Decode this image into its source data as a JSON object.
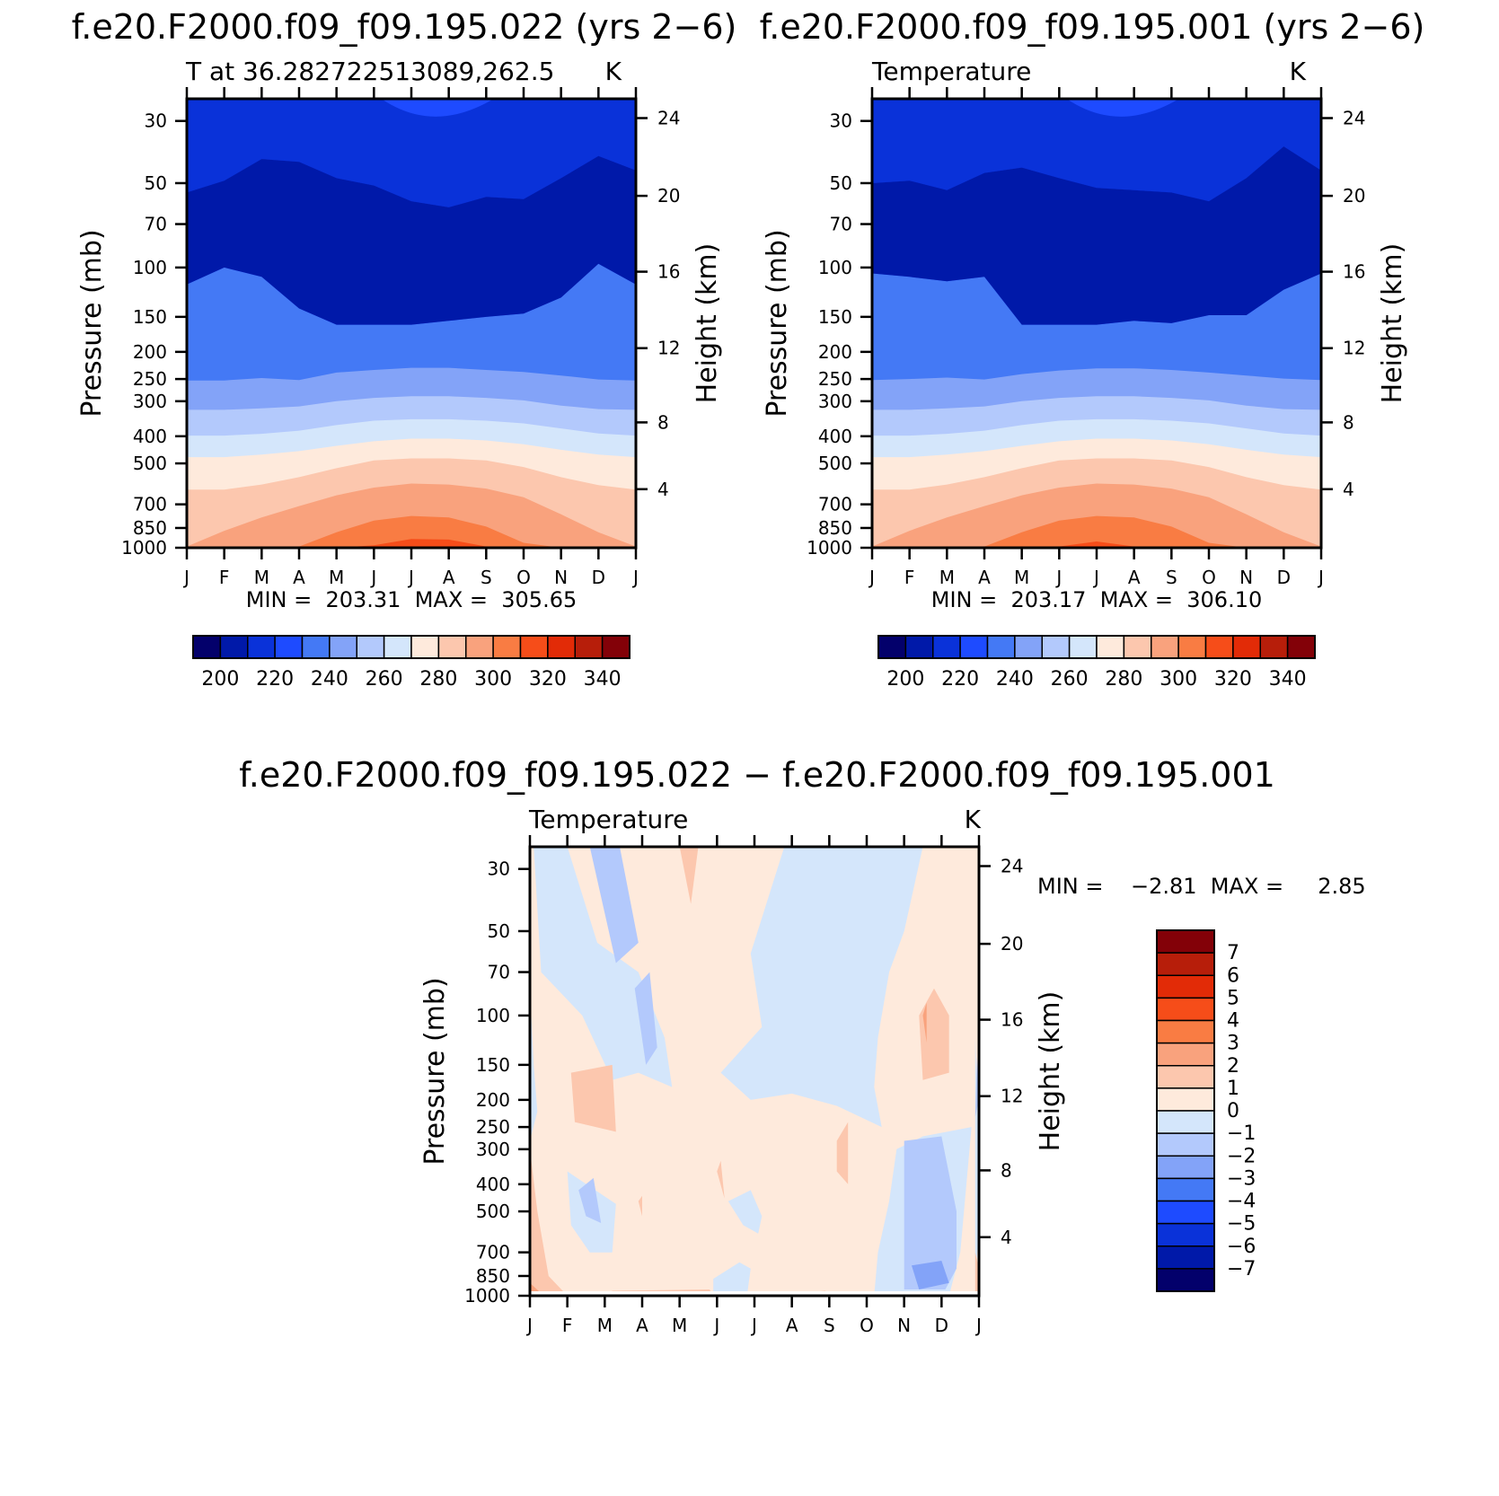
{
  "chart_data": [
    {
      "type": "heatmap",
      "title": "f.e20.F2000.f09_f09.195.022 (yrs 2−6)",
      "left_label": "T at 36.282722513089,262.5",
      "units": "K",
      "ylabel": "Pressure (mb)",
      "y2label": "Height (km)",
      "x_ticks": [
        "J",
        "F",
        "M",
        "A",
        "M",
        "J",
        "J",
        "A",
        "S",
        "O",
        "N",
        "D",
        "J"
      ],
      "y_ticks": [
        "30",
        "50",
        "70",
        "100",
        "150",
        "200",
        "250",
        "300",
        "400",
        "500",
        "700",
        "850",
        "1000"
      ],
      "y2_ticks": [
        "24",
        "20",
        "16",
        "12",
        "8",
        "4"
      ],
      "min_max_text": "MIN =  203.31  MAX =  305.65",
      "y_scale": "log",
      "ylim": [
        1000,
        25
      ],
      "colorbar_labels": [
        "200",
        "220",
        "240",
        "260",
        "280",
        "300",
        "320",
        "340"
      ],
      "colorbar_colors": [
        "#03006b",
        "#0019a9",
        "#0a32d9",
        "#1e4bff",
        "#4479f5",
        "#83a3f8",
        "#b3c9fc",
        "#d4e6fb",
        "#feeadc",
        "#fcc7ae",
        "#f9a27d",
        "#f97c43",
        "#f64d19",
        "#e22b07",
        "#b71e0a",
        "#830108"
      ],
      "contour_levels": [
        200,
        210,
        220,
        230,
        240,
        250,
        260,
        270,
        280,
        290,
        300,
        310,
        320,
        330,
        340
      ],
      "months": [
        1,
        2,
        3,
        4,
        5,
        6,
        7,
        8,
        9,
        10,
        11,
        12,
        13
      ],
      "boundaries": {
        "210": [
          54,
          49,
          41,
          42,
          48,
          51,
          58,
          61,
          56,
          57,
          48,
          40,
          45
        ],
        "220": [
          115,
          100,
          108,
          140,
          160,
          160,
          160,
          155,
          150,
          146,
          128,
          97,
          115
        ],
        "230": [
          253,
          253,
          248,
          252,
          237,
          232,
          228,
          228,
          232,
          236,
          243,
          251,
          253
        ],
        "240": [
          322,
          322,
          318,
          313,
          300,
          292,
          288,
          288,
          292,
          298,
          311,
          320,
          322
        ],
        "250": [
          398,
          398,
          392,
          382,
          365,
          352,
          348,
          348,
          352,
          360,
          375,
          391,
          398
        ],
        "260": [
          475,
          475,
          465,
          452,
          433,
          417,
          408,
          408,
          414,
          427,
          447,
          465,
          475
        ],
        "270": [
          620,
          620,
          595,
          560,
          520,
          488,
          480,
          480,
          488,
          515,
          560,
          598,
          620
        ],
        "280": [
          990,
          870,
          780,
          710,
          650,
          610,
          590,
          595,
          615,
          660,
          760,
          880,
          990
        ],
        "290": [
          1000,
          1000,
          1000,
          990,
          880,
          800,
          770,
          780,
          840,
          960,
          1000,
          1000,
          1000
        ],
        "300": [
          1000,
          1000,
          1000,
          1000,
          1000,
          980,
          930,
          935,
          990,
          1000,
          1000,
          1000,
          1000
        ]
      }
    },
    {
      "type": "heatmap",
      "title": "f.e20.F2000.f09_f09.195.001 (yrs 2−6)",
      "left_label": "Temperature",
      "units": "K",
      "ylabel": "Pressure (mb)",
      "y2label": "Height (km)",
      "x_ticks": [
        "J",
        "F",
        "M",
        "A",
        "M",
        "J",
        "J",
        "A",
        "S",
        "O",
        "N",
        "D",
        "J"
      ],
      "y_ticks": [
        "30",
        "50",
        "70",
        "100",
        "150",
        "200",
        "250",
        "300",
        "400",
        "500",
        "700",
        "850",
        "1000"
      ],
      "y2_ticks": [
        "24",
        "20",
        "16",
        "12",
        "8",
        "4"
      ],
      "min_max_text": "MIN =  203.17  MAX =  306.10",
      "y_scale": "log",
      "ylim": [
        1000,
        25
      ],
      "colorbar_labels": [
        "200",
        "220",
        "240",
        "260",
        "280",
        "300",
        "320",
        "340"
      ],
      "colorbar_colors": [
        "#03006b",
        "#0019a9",
        "#0a32d9",
        "#1e4bff",
        "#4479f5",
        "#83a3f8",
        "#b3c9fc",
        "#d4e6fb",
        "#feeadc",
        "#fcc7ae",
        "#f9a27d",
        "#f97c43",
        "#f64d19",
        "#e22b07",
        "#b71e0a",
        "#830108"
      ],
      "contour_levels": [
        200,
        210,
        220,
        230,
        240,
        250,
        260,
        270,
        280,
        290,
        300,
        310,
        320,
        330,
        340
      ],
      "months": [
        1,
        2,
        3,
        4,
        5,
        6,
        7,
        8,
        9,
        10,
        11,
        12,
        13
      ],
      "boundaries": {
        "210": [
          50,
          49,
          53,
          46,
          44,
          48,
          52,
          53,
          54,
          58,
          48,
          37,
          45
        ],
        "220": [
          105,
          108,
          112,
          108,
          160,
          160,
          160,
          155,
          158,
          148,
          148,
          120,
          105
        ],
        "230": [
          252,
          250,
          247,
          251,
          240,
          233,
          229,
          229,
          232,
          237,
          243,
          249,
          252
        ],
        "240": [
          322,
          322,
          318,
          313,
          300,
          292,
          288,
          288,
          292,
          298,
          311,
          320,
          322
        ],
        "250": [
          398,
          398,
          392,
          382,
          365,
          352,
          348,
          348,
          352,
          360,
          375,
          391,
          398
        ],
        "260": [
          475,
          475,
          465,
          452,
          433,
          417,
          408,
          408,
          414,
          427,
          447,
          465,
          475
        ],
        "270": [
          620,
          620,
          595,
          560,
          520,
          488,
          480,
          480,
          488,
          515,
          560,
          598,
          620
        ],
        "280": [
          990,
          870,
          780,
          710,
          650,
          610,
          590,
          595,
          615,
          660,
          760,
          880,
          990
        ],
        "290": [
          1000,
          1000,
          1000,
          990,
          880,
          800,
          770,
          780,
          840,
          960,
          1000,
          1000,
          1000
        ],
        "300": [
          1000,
          1000,
          1000,
          1000,
          1000,
          990,
          950,
          990,
          1000,
          1000,
          1000,
          1000,
          1000
        ]
      }
    },
    {
      "type": "heatmap",
      "title": "f.e20.F2000.f09_f09.195.022 − f.e20.F2000.f09_f09.195.001",
      "left_label": "Temperature",
      "units": "K",
      "ylabel": "Pressure (mb)",
      "y2label": "Height (km)",
      "x_ticks": [
        "J",
        "F",
        "M",
        "A",
        "M",
        "J",
        "J",
        "A",
        "S",
        "O",
        "N",
        "D",
        "J"
      ],
      "y_ticks": [
        "30",
        "50",
        "70",
        "100",
        "150",
        "200",
        "250",
        "300",
        "400",
        "500",
        "700",
        "850",
        "1000"
      ],
      "y2_ticks": [
        "24",
        "20",
        "16",
        "12",
        "8",
        "4"
      ],
      "min_max_text": "MIN =    −2.81  MAX =     2.85",
      "y_scale": "log",
      "ylim": [
        1000,
        25
      ],
      "colorbar_labels": [
        "7",
        "6",
        "5",
        "4",
        "3",
        "2",
        "1",
        "0",
        "−1",
        "−2",
        "−3",
        "−4",
        "−5",
        "−6",
        "−7"
      ],
      "colorbar_colors": [
        "#830108",
        "#b71e0a",
        "#e22b07",
        "#f64d19",
        "#f97c43",
        "#f9a27d",
        "#fcc7ae",
        "#feeadc",
        "#d4e6fb",
        "#b3c9fc",
        "#83a3f8",
        "#4479f5",
        "#1e4bff",
        "#0a32d9",
        "#0019a9",
        "#03006b"
      ],
      "contour_levels": [
        -7,
        -6,
        -5,
        -4,
        -3,
        -2,
        -1,
        0,
        1,
        2,
        3,
        4,
        5,
        6,
        7
      ],
      "regions": {
        "0_to_1": [],
        "-1_to_0": [
          [
            [
              1.1,
              25
            ],
            [
              2.0,
              25
            ],
            [
              2.8,
              55
            ],
            [
              3.9,
              70
            ],
            [
              4.6,
              120
            ],
            [
              4.8,
              180
            ],
            [
              3.9,
              160
            ],
            [
              3.2,
              170
            ],
            [
              2.4,
              100
            ],
            [
              1.3,
              70
            ]
          ],
          [
            [
              7.8,
              25
            ],
            [
              8.4,
              25
            ],
            [
              9.0,
              25
            ],
            [
              10.1,
              25
            ],
            [
              11.5,
              25
            ],
            [
              11.0,
              50
            ],
            [
              10.6,
              70
            ],
            [
              10.3,
              120
            ],
            [
              10.2,
              180
            ],
            [
              10.4,
              250
            ],
            [
              9.2,
              210
            ],
            [
              8.0,
              190
            ],
            [
              6.9,
              200
            ],
            [
              6.1,
              160
            ],
            [
              7.2,
              110
            ],
            [
              6.9,
              60
            ]
          ],
          [
            [
              1.0,
              80
            ],
            [
              1.1,
              150
            ],
            [
              1.2,
              220
            ],
            [
              1.0,
              280
            ]
          ],
          [
            [
              2.0,
              360
            ],
            [
              3.3,
              470
            ],
            [
              3.2,
              700
            ],
            [
              2.6,
              700
            ],
            [
              2.1,
              560
            ]
          ],
          [
            [
              6.3,
              460
            ],
            [
              6.9,
              420
            ],
            [
              7.2,
              520
            ],
            [
              7.1,
              600
            ],
            [
              6.7,
              560
            ]
          ],
          [
            [
              5.9,
              870
            ],
            [
              6.6,
              760
            ],
            [
              6.9,
              800
            ],
            [
              6.8,
              1000
            ],
            [
              5.9,
              1000
            ]
          ],
          [
            [
              10.2,
              1000
            ],
            [
              10.3,
              700
            ],
            [
              10.6,
              460
            ],
            [
              10.8,
              300
            ],
            [
              11.5,
              270
            ],
            [
              12.8,
              250
            ],
            [
              12.6,
              500
            ],
            [
              12.5,
              700
            ],
            [
              12.2,
              1000
            ]
          ],
          [
            [
              12.9,
              120
            ],
            [
              13.0,
              300
            ],
            [
              13.0,
              600
            ],
            [
              12.9,
              850
            ],
            [
              12.9,
              120
            ]
          ]
        ],
        "-2_to_-1": [
          [
            [
              2.6,
              25
            ],
            [
              3.4,
              25
            ],
            [
              3.9,
              55
            ],
            [
              3.3,
              65
            ]
          ],
          [
            [
              3.8,
              80
            ],
            [
              4.2,
              70
            ],
            [
              4.4,
              130
            ],
            [
              4.1,
              150
            ]
          ],
          [
            [
              11.0,
              280
            ],
            [
              12.0,
              270
            ],
            [
              12.4,
              500
            ],
            [
              12.4,
              800
            ],
            [
              12.1,
              950
            ],
            [
              11.0,
              950
            ]
          ],
          [
            [
              2.3,
              420
            ],
            [
              2.7,
              380
            ],
            [
              2.9,
              550
            ],
            [
              2.5,
              520
            ]
          ],
          [
            [
              12.95,
              140
            ],
            [
              13.0,
              200
            ],
            [
              12.9,
              230
            ]
          ]
        ],
        "-3_to_-2": [
          [
            [
              11.2,
              780
            ],
            [
              12.0,
              750
            ],
            [
              12.2,
              900
            ],
            [
              11.4,
              950
            ]
          ]
        ],
        "1_to_2": [
          [
            [
              1.0,
              300
            ],
            [
              1.2,
              500
            ],
            [
              1.5,
              850
            ],
            [
              2.0,
              1000
            ],
            [
              1.0,
              1000
            ]
          ],
          [
            [
              2.1,
              160
            ],
            [
              3.2,
              150
            ],
            [
              3.3,
              260
            ],
            [
              2.2,
              240
            ]
          ],
          [
            [
              5.0,
              25
            ],
            [
              5.5,
              25
            ],
            [
              5.3,
              40
            ]
          ],
          [
            [
              11.4,
              100
            ],
            [
              11.8,
              80
            ],
            [
              12.2,
              100
            ],
            [
              12.2,
              160
            ],
            [
              11.5,
              170
            ]
          ],
          [
            [
              9.2,
              280
            ],
            [
              9.5,
              240
            ],
            [
              9.5,
              400
            ],
            [
              9.2,
              360
            ]
          ],
          [
            [
              6.0,
              360
            ],
            [
              6.1,
              330
            ],
            [
              6.2,
              450
            ]
          ],
          [
            [
              3.9,
              460
            ],
            [
              4.0,
              440
            ],
            [
              4.0,
              520
            ]
          ],
          [
            [
              3.2,
              960
            ],
            [
              5.8,
              950
            ],
            [
              5.9,
              1000
            ],
            [
              3.1,
              1000
            ]
          ],
          [
            [
              8.5,
              970
            ],
            [
              8.9,
              960
            ],
            [
              8.9,
              1000
            ],
            [
              8.5,
              1000
            ]
          ],
          [
            [
              12.9,
              700
            ],
            [
              13.0,
              800
            ],
            [
              13.0,
              1000
            ],
            [
              12.9,
              1000
            ]
          ]
        ],
        "2_to_3": [
          [
            [
              1.0,
              900
            ],
            [
              1.3,
              980
            ],
            [
              1.0,
              1000
            ]
          ],
          [
            [
              11.5,
              100
            ],
            [
              11.6,
              90
            ],
            [
              11.6,
              125
            ]
          ]
        ]
      }
    }
  ]
}
